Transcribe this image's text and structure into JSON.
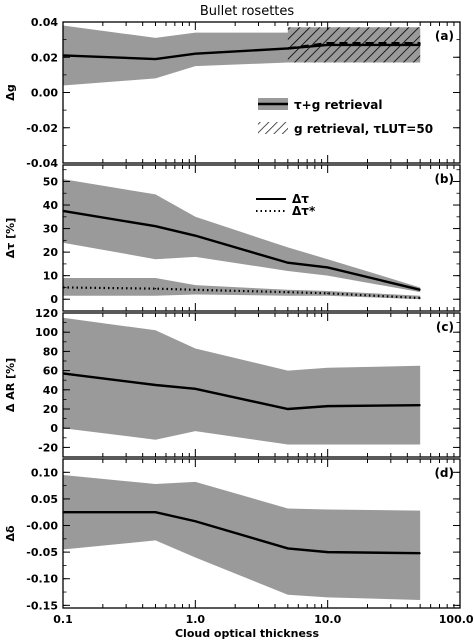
{
  "title": "Bullet rosettes",
  "xlabel": "Cloud optical thickness",
  "x_ticks": [
    "0.1",
    "1.0",
    "10.0",
    "100.00"
  ],
  "chart_data": [
    {
      "type": "line",
      "panel": "(a)",
      "ylabel": "Δg",
      "xscale": "log",
      "xlim": [
        0.1,
        100
      ],
      "ylim": [
        -0.04,
        0.04
      ],
      "y_ticks": [
        "0.04",
        "0.02",
        "0.00",
        "-0.02",
        "-0.04"
      ],
      "x": [
        0.1,
        0.5,
        1.0,
        5.0,
        10.0,
        50.0
      ],
      "series": [
        {
          "name": "τ+g retrieval",
          "values": [
            0.021,
            0.019,
            0.022,
            0.025,
            0.027,
            0.027
          ],
          "band_low": [
            0.004,
            0.008,
            0.015,
            0.017,
            0.018,
            0.018
          ],
          "band_high": [
            0.038,
            0.031,
            0.034,
            0.034,
            0.036,
            0.036
          ]
        },
        {
          "name": "g retrieval, τLUT=50",
          "x": [
            5.0,
            10.0,
            50.0
          ],
          "values": [
            0.025,
            0.028,
            0.028
          ],
          "band_low": [
            0.017,
            0.017,
            0.017
          ],
          "band_high": [
            0.037,
            0.037,
            0.037
          ]
        }
      ],
      "legend": [
        {
          "kind": "band",
          "label": "τ+g retrieval"
        },
        {
          "kind": "hatch",
          "label": "g retrieval, τLUT=50"
        }
      ]
    },
    {
      "type": "line",
      "panel": "(b)",
      "ylabel": "Δτ [%]",
      "xscale": "log",
      "xlim": [
        0.1,
        100
      ],
      "ylim": [
        -5,
        57
      ],
      "y_ticks": [
        "50",
        "40",
        "30",
        "20",
        "10",
        "0"
      ],
      "y_tick_values": [
        50,
        40,
        30,
        20,
        10,
        0
      ],
      "x": [
        0.1,
        0.5,
        1.0,
        5.0,
        10.0,
        50.0
      ],
      "series": [
        {
          "name": "Δτ",
          "values": [
            37.5,
            31,
            27,
            15.5,
            13.5,
            4
          ],
          "band_low": [
            24,
            17,
            18,
            12,
            10,
            3
          ],
          "band_high": [
            51,
            44.5,
            35,
            22,
            17,
            5
          ]
        },
        {
          "name": "Δτ*",
          "values": [
            5,
            4.5,
            4,
            3,
            2.5,
            0.5
          ],
          "band_low": [
            1.5,
            1.5,
            2,
            1.5,
            1.5,
            0
          ],
          "band_high": [
            9,
            9,
            6,
            4,
            3.5,
            1.5
          ]
        }
      ],
      "legend": [
        {
          "kind": "solid",
          "label": "Δτ"
        },
        {
          "kind": "dotted",
          "label": "Δτ*"
        }
      ]
    },
    {
      "type": "line",
      "panel": "(c)",
      "ylabel": "Δ AR [%]",
      "xscale": "log",
      "xlim": [
        0.1,
        100
      ],
      "ylim": [
        -30,
        120
      ],
      "y_ticks": [
        "120",
        "100",
        "80",
        "60",
        "40",
        "20",
        "0",
        "-20"
      ],
      "y_tick_values": [
        120,
        100,
        80,
        60,
        40,
        20,
        0,
        -20
      ],
      "x": [
        0.1,
        0.5,
        1.0,
        5.0,
        10.0,
        50.0
      ],
      "series": [
        {
          "name": "ΔAR",
          "values": [
            57,
            45,
            41,
            20,
            23,
            24
          ],
          "band_low": [
            0,
            -12,
            -3,
            -17,
            -17,
            -17
          ],
          "band_high": [
            115,
            102,
            83,
            60,
            63,
            65
          ]
        }
      ]
    },
    {
      "type": "line",
      "panel": "(d)",
      "ylabel": "Δδ",
      "xscale": "log",
      "xlim": [
        0.1,
        100
      ],
      "ylim": [
        -0.155,
        0.125
      ],
      "y_ticks": [
        "0.10",
        "0.05",
        "-0.00",
        "-0.05",
        "-0.10",
        "-0.15"
      ],
      "y_tick_values": [
        0.1,
        0.05,
        0.0,
        -0.05,
        -0.1,
        -0.15
      ],
      "x": [
        0.1,
        0.5,
        1.0,
        5.0,
        10.0,
        50.0
      ],
      "series": [
        {
          "name": "Δδ",
          "values": [
            0.025,
            0.025,
            0.008,
            -0.043,
            -0.05,
            -0.052
          ],
          "band_low": [
            -0.045,
            -0.028,
            -0.06,
            -0.13,
            -0.135,
            -0.14
          ],
          "band_high": [
            0.095,
            0.078,
            0.082,
            0.032,
            0.03,
            0.028
          ]
        }
      ]
    }
  ],
  "colors": {
    "band": "#9a9a9a",
    "line": "#000000",
    "background": "#ffffff"
  }
}
